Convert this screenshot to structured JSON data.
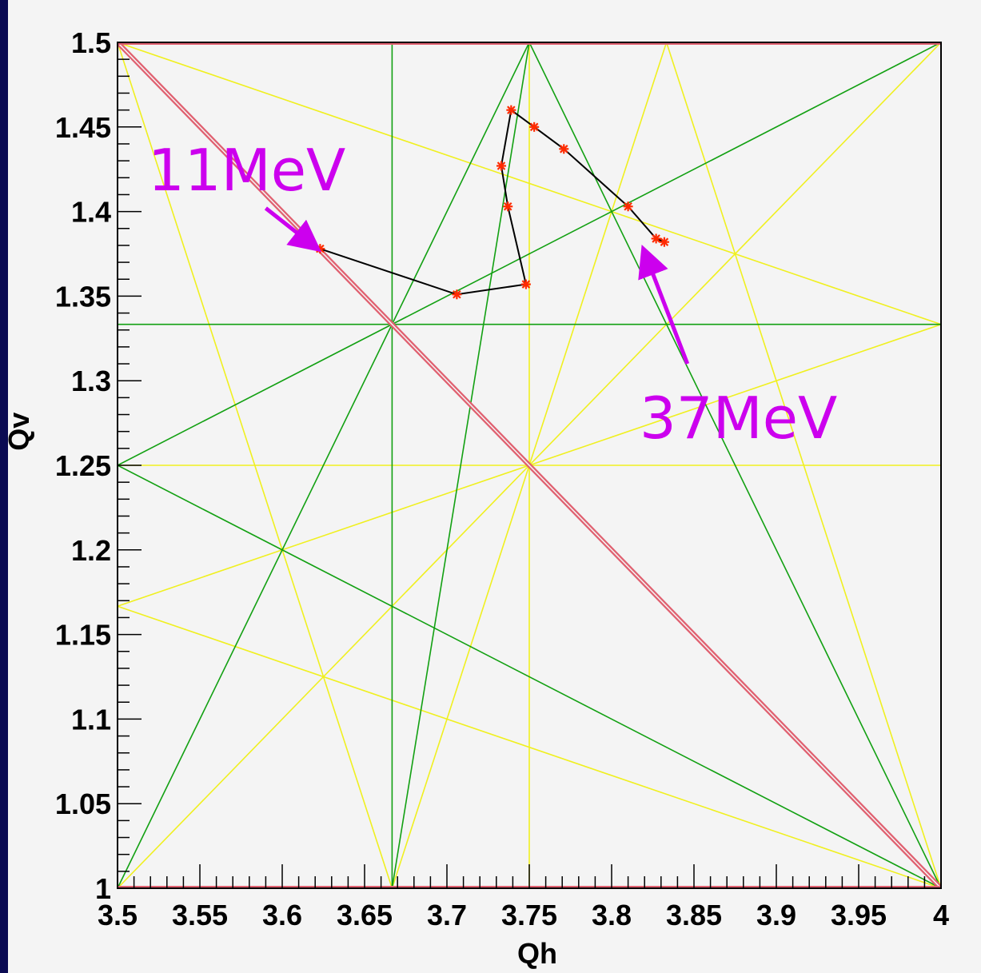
{
  "chart_data": {
    "type": "scatter",
    "title": "",
    "xlabel": "Qh",
    "ylabel": "Qv",
    "xlim": [
      3.5,
      4.0
    ],
    "ylim": [
      1.0,
      1.5
    ],
    "x_ticks": [
      "3.5",
      "3.55",
      "3.6",
      "3.65",
      "3.7",
      "3.75",
      "3.8",
      "3.85",
      "3.9",
      "3.95",
      "4"
    ],
    "y_ticks": [
      "1",
      "1.05",
      "1.1",
      "1.15",
      "1.2",
      "1.25",
      "1.3",
      "1.35",
      "1.4",
      "1.45",
      "1.5"
    ],
    "grid": false,
    "colors": {
      "red_lines": "#e06070",
      "green_lines": "#12a012",
      "yellow_lines": "#f0f020",
      "points": "#ff2a00",
      "path": "#000000",
      "annotation": "#cc00ee"
    },
    "series": [
      {
        "x": [
          3.623,
          3.706,
          3.748,
          3.737,
          3.733,
          3.739,
          3.753,
          3.771,
          3.81,
          3.827,
          3.832
        ],
        "y": [
          1.378,
          1.351,
          1.357,
          1.403,
          1.427,
          1.46,
          1.45,
          1.437,
          1.403,
          1.384,
          1.382
        ]
      }
    ],
    "resonance_lines": {
      "red": [
        [
          [
            3.5,
            1.5
          ],
          [
            4.0,
            1.0
          ]
        ],
        [
          [
            3.5,
            1.5
          ],
          [
            4.0,
            1.5
          ]
        ],
        [
          [
            3.5,
            1.0
          ],
          [
            4.0,
            1.0
          ]
        ]
      ],
      "green": [
        [
          [
            3.6667,
            1.0
          ],
          [
            3.6667,
            1.5
          ]
        ],
        [
          [
            3.5,
            1.3333
          ],
          [
            4.0,
            1.3333
          ]
        ],
        [
          [
            3.5,
            1.0
          ],
          [
            3.75,
            1.5
          ]
        ],
        [
          [
            3.75,
            1.5
          ],
          [
            4.0,
            1.0
          ]
        ],
        [
          [
            3.5,
            1.25
          ],
          [
            4.0,
            1.5
          ]
        ],
        [
          [
            3.5,
            1.25
          ],
          [
            4.0,
            1.0
          ]
        ],
        [
          [
            3.6667,
            1.0
          ],
          [
            3.75,
            1.5
          ]
        ]
      ],
      "yellow": [
        [
          [
            3.75,
            1.0
          ],
          [
            3.75,
            1.5
          ]
        ],
        [
          [
            3.5,
            1.25
          ],
          [
            4.0,
            1.25
          ]
        ],
        [
          [
            3.5,
            1.5
          ],
          [
            3.6667,
            1.0
          ]
        ],
        [
          [
            3.6667,
            1.0
          ],
          [
            3.8333,
            1.5
          ]
        ],
        [
          [
            3.8333,
            1.5
          ],
          [
            4.0,
            1.0
          ]
        ],
        [
          [
            3.5,
            1.5
          ],
          [
            4.0,
            1.3333
          ]
        ],
        [
          [
            3.5,
            1.1667
          ],
          [
            4.0,
            1.3333
          ]
        ],
        [
          [
            3.5,
            1.1667
          ],
          [
            4.0,
            1.0
          ]
        ],
        [
          [
            3.5,
            1.0
          ],
          [
            4.0,
            1.5
          ]
        ],
        [
          [
            3.5,
            1.5
          ],
          [
            4.0,
            1.0
          ]
        ]
      ]
    },
    "annotations": [
      {
        "text": "11MeV",
        "arrow_from": [
          3.59,
          1.402
        ],
        "arrow_to": [
          3.62,
          1.379
        ]
      },
      {
        "text": "37MeV",
        "arrow_from": [
          3.846,
          1.31
        ],
        "arrow_to": [
          3.82,
          1.376
        ]
      }
    ]
  }
}
